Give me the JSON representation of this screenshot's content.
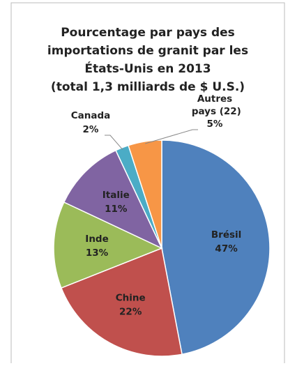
{
  "chart_data": {
    "type": "pie",
    "title": [
      "Pourcentage par pays des",
      "importations de granit par les",
      "États-Unis en 2013",
      "(total 1,3 milliards de $ U.S.)"
    ],
    "categories": [
      "Brésil",
      "Chine",
      "Inde",
      "Italie",
      "Canada",
      "Autres pays (22)"
    ],
    "values": [
      47,
      22,
      13,
      11,
      2,
      5
    ],
    "value_labels": [
      "47%",
      "22%",
      "13%",
      "11%",
      "2%",
      "5%"
    ],
    "colors": [
      "#4f81bd",
      "#c0504d",
      "#9bbb59",
      "#8064a2",
      "#4bacc6",
      "#f79646"
    ]
  }
}
